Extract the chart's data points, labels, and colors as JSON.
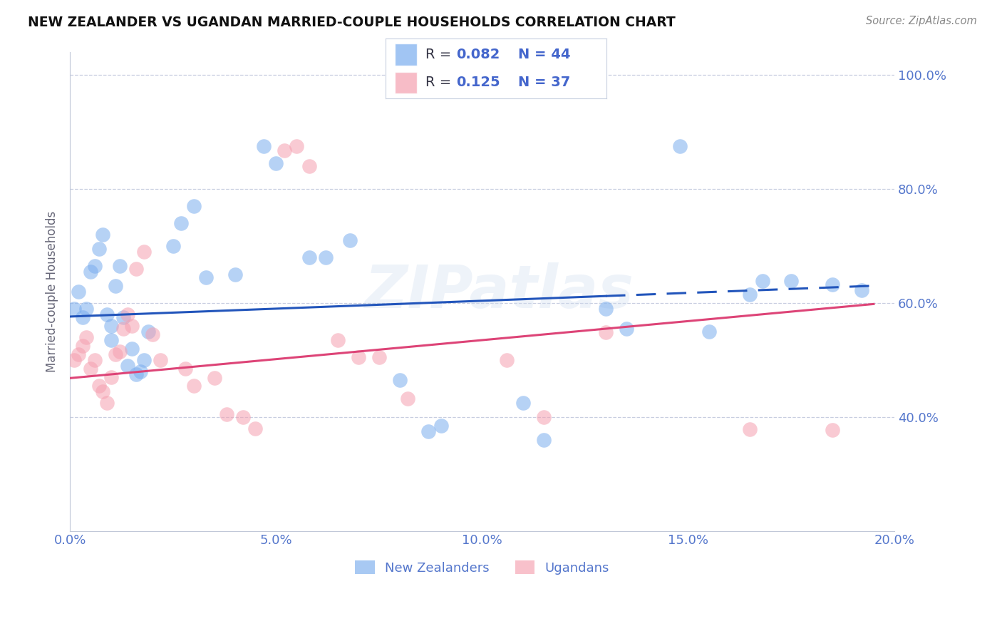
{
  "title": "NEW ZEALANDER VS UGANDAN MARRIED-COUPLE HOUSEHOLDS CORRELATION CHART",
  "source": "Source: ZipAtlas.com",
  "ylabel": "Married-couple Households",
  "xmin": 0.0,
  "xmax": 0.2,
  "ymin": 0.2,
  "ymax": 1.04,
  "nz_R": 0.082,
  "nz_N": 44,
  "ug_R": 0.125,
  "ug_N": 37,
  "nz_color": "#7aadee",
  "ug_color": "#f5a0b0",
  "nz_line_color": "#2255bb",
  "ug_line_color": "#dd4477",
  "axis_color": "#5577cc",
  "grid_color": "#c8cee0",
  "background_color": "#ffffff",
  "watermark": "ZIPatlas",
  "legend_text_color": "#4466cc",
  "nz_points": [
    [
      0.001,
      0.59
    ],
    [
      0.002,
      0.62
    ],
    [
      0.003,
      0.575
    ],
    [
      0.004,
      0.59
    ],
    [
      0.005,
      0.655
    ],
    [
      0.006,
      0.665
    ],
    [
      0.007,
      0.695
    ],
    [
      0.008,
      0.72
    ],
    [
      0.009,
      0.58
    ],
    [
      0.01,
      0.56
    ],
    [
      0.01,
      0.535
    ],
    [
      0.011,
      0.63
    ],
    [
      0.012,
      0.665
    ],
    [
      0.013,
      0.575
    ],
    [
      0.014,
      0.49
    ],
    [
      0.015,
      0.52
    ],
    [
      0.016,
      0.475
    ],
    [
      0.017,
      0.48
    ],
    [
      0.018,
      0.5
    ],
    [
      0.019,
      0.55
    ],
    [
      0.025,
      0.7
    ],
    [
      0.027,
      0.74
    ],
    [
      0.03,
      0.77
    ],
    [
      0.033,
      0.645
    ],
    [
      0.04,
      0.65
    ],
    [
      0.047,
      0.875
    ],
    [
      0.05,
      0.845
    ],
    [
      0.058,
      0.68
    ],
    [
      0.062,
      0.68
    ],
    [
      0.068,
      0.71
    ],
    [
      0.08,
      0.465
    ],
    [
      0.087,
      0.375
    ],
    [
      0.09,
      0.385
    ],
    [
      0.11,
      0.425
    ],
    [
      0.115,
      0.36
    ],
    [
      0.13,
      0.59
    ],
    [
      0.135,
      0.555
    ],
    [
      0.148,
      0.875
    ],
    [
      0.155,
      0.55
    ],
    [
      0.165,
      0.615
    ],
    [
      0.168,
      0.638
    ],
    [
      0.175,
      0.638
    ],
    [
      0.185,
      0.632
    ],
    [
      0.192,
      0.622
    ]
  ],
  "ug_points": [
    [
      0.001,
      0.5
    ],
    [
      0.002,
      0.51
    ],
    [
      0.003,
      0.525
    ],
    [
      0.004,
      0.54
    ],
    [
      0.005,
      0.485
    ],
    [
      0.006,
      0.5
    ],
    [
      0.007,
      0.455
    ],
    [
      0.008,
      0.445
    ],
    [
      0.009,
      0.425
    ],
    [
      0.01,
      0.47
    ],
    [
      0.011,
      0.51
    ],
    [
      0.012,
      0.515
    ],
    [
      0.013,
      0.555
    ],
    [
      0.014,
      0.58
    ],
    [
      0.015,
      0.56
    ],
    [
      0.016,
      0.66
    ],
    [
      0.018,
      0.69
    ],
    [
      0.02,
      0.545
    ],
    [
      0.022,
      0.5
    ],
    [
      0.028,
      0.485
    ],
    [
      0.03,
      0.455
    ],
    [
      0.035,
      0.468
    ],
    [
      0.038,
      0.405
    ],
    [
      0.042,
      0.4
    ],
    [
      0.045,
      0.38
    ],
    [
      0.052,
      0.868
    ],
    [
      0.055,
      0.875
    ],
    [
      0.058,
      0.84
    ],
    [
      0.065,
      0.535
    ],
    [
      0.07,
      0.505
    ],
    [
      0.075,
      0.505
    ],
    [
      0.082,
      0.432
    ],
    [
      0.106,
      0.5
    ],
    [
      0.115,
      0.4
    ],
    [
      0.13,
      0.548
    ],
    [
      0.165,
      0.378
    ],
    [
      0.185,
      0.377
    ]
  ]
}
